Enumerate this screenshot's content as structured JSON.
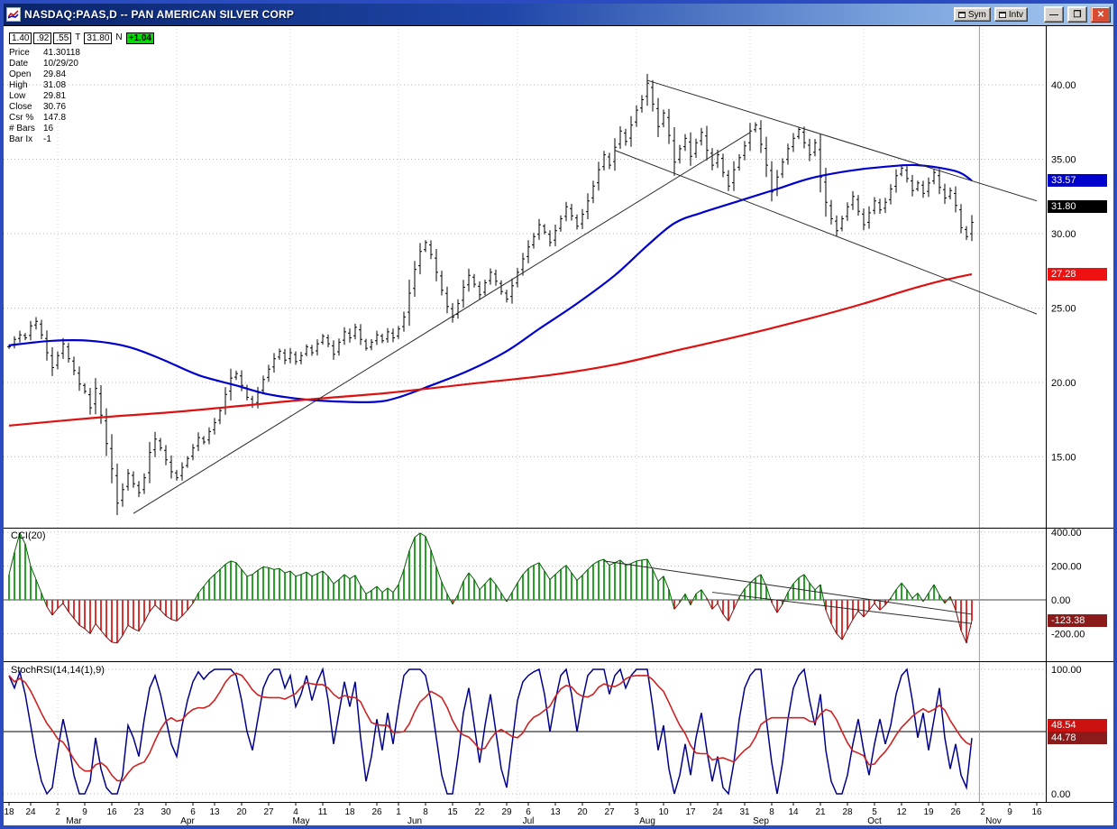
{
  "window": {
    "title": "NASDAQ:PAAS,D -- PAN AMERICAN SILVER CORP",
    "buttons": {
      "sym": "Sym",
      "intv": "Intv",
      "minimize": "—",
      "maximize": "❐",
      "close": "✕"
    }
  },
  "info_panel": {
    "boxes": {
      "b1": "1.40",
      "b2": ".92",
      "b3": ".55",
      "t": "T",
      "last": "31.80",
      "n": "N",
      "change": "+1.04"
    },
    "rows": [
      {
        "label": "Price",
        "value": "41.30118"
      },
      {
        "label": "Date",
        "value": "10/29/20"
      },
      {
        "label": "Open",
        "value": "29.84"
      },
      {
        "label": "High",
        "value": "31.08"
      },
      {
        "label": "Low",
        "value": "29.81"
      },
      {
        "label": "Close",
        "value": "30.76"
      },
      {
        "label": "Csr %",
        "value": "147.8"
      },
      {
        "label": "# Bars",
        "value": "16"
      },
      {
        "label": "Bar Ix",
        "value": "-1"
      }
    ]
  },
  "value_boxes": {
    "ma_blue": "33.57",
    "last_price": "31.80",
    "ma_red": "27.28",
    "cci": "-123.38",
    "stoch_d": "48.54",
    "stoch_k": "44.78"
  },
  "chart_data": {
    "type": "ohlc-bar",
    "symbol": "NASDAQ:PAAS",
    "interval": "D",
    "cursor_day": 179.4,
    "x_axis": {
      "ticks": [
        [
          "18",
          0
        ],
        [
          "24",
          4
        ],
        [
          "2",
          9
        ],
        [
          "9",
          14
        ],
        [
          "16",
          19
        ],
        [
          "23",
          24
        ],
        [
          "30",
          29
        ],
        [
          "6",
          34
        ],
        [
          "13",
          38
        ],
        [
          "20",
          43
        ],
        [
          "27",
          48
        ],
        [
          "4",
          53
        ],
        [
          "11",
          58
        ],
        [
          "18",
          63
        ],
        [
          "26",
          68
        ],
        [
          "1",
          72
        ],
        [
          "8",
          77
        ],
        [
          "15",
          82
        ],
        [
          "22",
          87
        ],
        [
          "29",
          92
        ],
        [
          "6",
          96
        ],
        [
          "13",
          101
        ],
        [
          "20",
          106
        ],
        [
          "27",
          111
        ],
        [
          "3",
          116
        ],
        [
          "10",
          121
        ],
        [
          "17",
          126
        ],
        [
          "24",
          131
        ],
        [
          "31",
          136
        ],
        [
          "8",
          141
        ],
        [
          "14",
          145
        ],
        [
          "21",
          150
        ],
        [
          "28",
          155
        ],
        [
          "5",
          160
        ],
        [
          "12",
          165
        ],
        [
          "19",
          170
        ],
        [
          "26",
          175
        ],
        [
          "2",
          180
        ],
        [
          "9",
          185
        ],
        [
          "16",
          190
        ]
      ],
      "months": [
        [
          "Mar",
          12
        ],
        [
          "Apr",
          33
        ],
        [
          "May",
          54
        ],
        [
          "Jun",
          75
        ],
        [
          "Jul",
          96
        ],
        [
          "Aug",
          118
        ],
        [
          "Sep",
          139
        ],
        [
          "Oct",
          160
        ],
        [
          "Nov",
          182
        ]
      ],
      "month_start_days": [
        9,
        31,
        52,
        72,
        94,
        116,
        137,
        158,
        180
      ]
    },
    "price_panel": {
      "ylim": [
        10.5,
        44.0
      ],
      "yticks": [
        40,
        35,
        30,
        25,
        20,
        15
      ],
      "last_price": 31.8,
      "closes": [
        22.4,
        22.9,
        23.2,
        23.0,
        23.8,
        24.1,
        23.2,
        22.0,
        21.0,
        21.8,
        22.6,
        21.6,
        20.8,
        19.9,
        19.4,
        18.3,
        19.6,
        17.8,
        15.9,
        14.2,
        11.9,
        12.8,
        13.9,
        13.2,
        12.6,
        13.6,
        15.3,
        16.2,
        15.6,
        14.8,
        14.0,
        13.6,
        14.3,
        14.9,
        15.6,
        16.3,
        16.0,
        16.7,
        17.3,
        18.1,
        19.2,
        20.3,
        20.6,
        19.8,
        19.0,
        18.5,
        19.3,
        20.2,
        20.9,
        21.6,
        22.1,
        21.5,
        22.0,
        21.4,
        21.8,
        22.4,
        22.0,
        22.6,
        23.1,
        22.6,
        21.9,
        22.7,
        23.4,
        23.0,
        23.7,
        22.9,
        22.3,
        22.7,
        23.2,
        22.8,
        23.4,
        23.0,
        23.6,
        24.4,
        26.0,
        27.6,
        28.8,
        29.4,
        28.6,
        27.4,
        26.2,
        25.1,
        24.4,
        25.3,
        26.4,
        27.2,
        26.6,
        25.9,
        26.7,
        27.4,
        26.8,
        26.1,
        25.6,
        26.5,
        27.4,
        28.3,
        29.1,
        29.8,
        30.6,
        30.1,
        29.4,
        30.2,
        31.0,
        31.8,
        31.2,
        30.5,
        31.3,
        32.2,
        33.2,
        34.3,
        35.3,
        34.6,
        35.8,
        36.9,
        36.2,
        37.3,
        38.3,
        39.0,
        40.1,
        38.7,
        37.2,
        38.1,
        36.6,
        34.8,
        35.7,
        36.4,
        35.2,
        36.1,
        36.8,
        35.6,
        34.6,
        35.3,
        34.1,
        33.2,
        34.3,
        35.1,
        35.9,
        36.9,
        37.3,
        36.0,
        34.6,
        32.8,
        33.8,
        34.8,
        35.7,
        36.4,
        37.0,
        36.1,
        35.3,
        36.1,
        33.8,
        32.1,
        31.0,
        30.2,
        31.0,
        31.8,
        32.5,
        31.5,
        30.6,
        31.4,
        32.2,
        31.6,
        32.1,
        33.0,
        33.9,
        34.4,
        33.7,
        32.9,
        33.4,
        32.7,
        33.4,
        34.1,
        33.1,
        32.4,
        32.9,
        31.9,
        30.4,
        29.8,
        30.76
      ],
      "ma_blue": {
        "name": "moving-average-fast",
        "color": "#0000cc",
        "last": 33.57,
        "points": [
          [
            0,
            22.5
          ],
          [
            8,
            22.8
          ],
          [
            15,
            22.8
          ],
          [
            22,
            22.4
          ],
          [
            28,
            21.6
          ],
          [
            35,
            20.5
          ],
          [
            42,
            19.8
          ],
          [
            48,
            19.2
          ],
          [
            55,
            18.85
          ],
          [
            62,
            18.7
          ],
          [
            68,
            18.7
          ],
          [
            72,
            19.0
          ],
          [
            78,
            19.8
          ],
          [
            85,
            20.8
          ],
          [
            92,
            22.1
          ],
          [
            98,
            23.6
          ],
          [
            105,
            25.3
          ],
          [
            112,
            27.2
          ],
          [
            118,
            29.2
          ],
          [
            123,
            30.7
          ],
          [
            128,
            31.4
          ],
          [
            135,
            32.2
          ],
          [
            142,
            33.0
          ],
          [
            148,
            33.7
          ],
          [
            155,
            34.2
          ],
          [
            162,
            34.5
          ],
          [
            168,
            34.6
          ],
          [
            175,
            34.2
          ],
          [
            178,
            33.57
          ]
        ]
      },
      "ma_red": {
        "name": "moving-average-slow",
        "color": "#dd1111",
        "last": 27.28,
        "points": [
          [
            0,
            17.1
          ],
          [
            15,
            17.6
          ],
          [
            30,
            18.0
          ],
          [
            42,
            18.4
          ],
          [
            55,
            18.85
          ],
          [
            70,
            19.3
          ],
          [
            85,
            19.9
          ],
          [
            100,
            20.5
          ],
          [
            112,
            21.2
          ],
          [
            124,
            22.2
          ],
          [
            136,
            23.2
          ],
          [
            148,
            24.3
          ],
          [
            158,
            25.3
          ],
          [
            166,
            26.2
          ],
          [
            172,
            26.8
          ],
          [
            178,
            27.28
          ]
        ]
      },
      "trendlines": [
        [
          23,
          11.2,
          137,
          36.8
        ],
        [
          118,
          40.3,
          190,
          32.2
        ],
        [
          112,
          35.6,
          190,
          24.6
        ]
      ]
    },
    "cci_panel": {
      "label": "CCI(20)",
      "yticks": [
        400,
        200,
        0,
        -200
      ],
      "last": -123.38,
      "values": [
        150,
        280,
        395,
        330,
        200,
        120,
        40,
        -40,
        -90,
        -50,
        -20,
        -70,
        -110,
        -150,
        -170,
        -200,
        -140,
        -180,
        -220,
        -250,
        -255,
        -210,
        -150,
        -170,
        -185,
        -130,
        -70,
        -30,
        -60,
        -95,
        -115,
        -125,
        -95,
        -60,
        -20,
        40,
        80,
        120,
        150,
        180,
        210,
        230,
        220,
        180,
        140,
        150,
        175,
        195,
        190,
        180,
        185,
        160,
        170,
        140,
        150,
        165,
        140,
        155,
        170,
        140,
        95,
        120,
        150,
        125,
        145,
        85,
        35,
        55,
        80,
        45,
        70,
        45,
        90,
        180,
        290,
        370,
        395,
        375,
        295,
        195,
        105,
        35,
        -25,
        30,
        110,
        160,
        120,
        60,
        95,
        130,
        90,
        40,
        -10,
        45,
        100,
        150,
        185,
        205,
        220,
        170,
        120,
        150,
        180,
        205,
        160,
        115,
        145,
        180,
        210,
        230,
        240,
        205,
        220,
        235,
        205,
        215,
        230,
        235,
        240,
        180,
        110,
        140,
        60,
        -55,
        -15,
        35,
        -30,
        35,
        60,
        10,
        -55,
        -20,
        -85,
        -125,
        -55,
        15,
        65,
        100,
        130,
        150,
        80,
        -15,
        -75,
        -25,
        45,
        95,
        130,
        150,
        100,
        60,
        90,
        -60,
        -140,
        -200,
        -235,
        -175,
        -115,
        -65,
        -100,
        -60,
        -20,
        -60,
        -30,
        10,
        60,
        100,
        60,
        10,
        40,
        -10,
        40,
        90,
        30,
        -20,
        20,
        -60,
        -180,
        -255,
        -123.38
      ],
      "trendlines": [
        [
          110,
          230,
          178,
          -85
        ],
        [
          130,
          45,
          178,
          -140
        ]
      ]
    },
    "stoch_panel": {
      "label": "StochRSI(14,14(1),9)",
      "yticks": [
        100,
        0
      ],
      "mid_line": 50,
      "d_period": 9,
      "last_k": 44.78,
      "last_d": 48.54,
      "values_k": [
        95,
        85,
        98,
        80,
        55,
        30,
        10,
        0,
        5,
        35,
        60,
        40,
        15,
        0,
        0,
        10,
        45,
        20,
        5,
        0,
        0,
        15,
        55,
        45,
        30,
        60,
        85,
        95,
        80,
        60,
        40,
        30,
        55,
        75,
        90,
        98,
        92,
        97,
        100,
        100,
        100,
        100,
        95,
        75,
        50,
        35,
        60,
        85,
        95,
        100,
        100,
        85,
        95,
        70,
        80,
        95,
        75,
        90,
        100,
        75,
        40,
        65,
        90,
        70,
        90,
        45,
        10,
        30,
        60,
        35,
        65,
        40,
        70,
        95,
        100,
        100,
        100,
        95,
        75,
        45,
        15,
        0,
        0,
        30,
        65,
        85,
        55,
        25,
        55,
        80,
        50,
        20,
        5,
        40,
        75,
        90,
        95,
        98,
        100,
        80,
        50,
        75,
        95,
        100,
        80,
        50,
        75,
        95,
        100,
        100,
        100,
        80,
        95,
        100,
        85,
        95,
        100,
        100,
        100,
        70,
        35,
        55,
        20,
        0,
        15,
        40,
        15,
        45,
        65,
        35,
        10,
        30,
        5,
        0,
        25,
        60,
        85,
        95,
        100,
        100,
        60,
        25,
        0,
        25,
        60,
        85,
        95,
        100,
        75,
        55,
        80,
        35,
        10,
        0,
        0,
        15,
        40,
        60,
        35,
        15,
        40,
        60,
        40,
        55,
        80,
        95,
        100,
        75,
        45,
        65,
        35,
        60,
        85,
        45,
        20,
        40,
        15,
        5,
        44.78
      ]
    }
  }
}
